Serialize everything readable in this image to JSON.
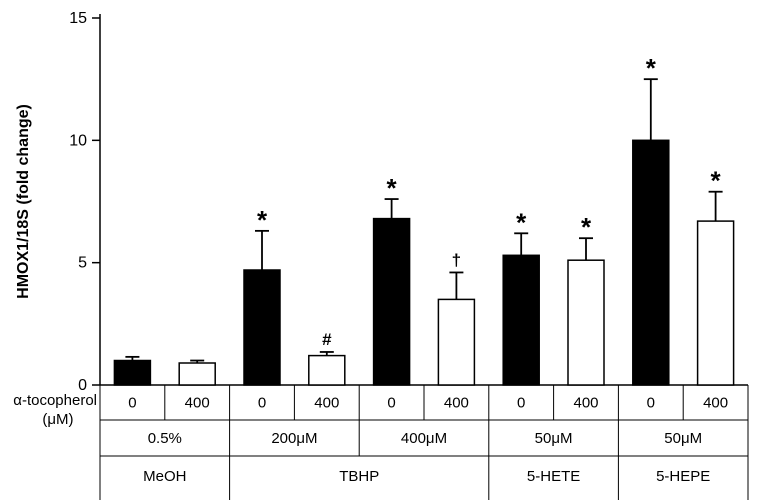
{
  "figure": {
    "background": "#ffffff",
    "border_color": "#000000"
  },
  "chart_data": {
    "type": "bar",
    "title": "",
    "ylabel": "HMOX1/18S (fold change)",
    "ylim": [
      0,
      15
    ],
    "yticks": [
      0,
      5,
      10,
      15
    ],
    "grid": false,
    "legend": "none",
    "x_row_labels": {
      "line1": "α-tocopherol",
      "line2": "(μM)"
    },
    "bar_colors": {
      "0": "#000000",
      "400": "#ffffff"
    },
    "bar_edge_color": "#000000",
    "error_bar_color": "#000000",
    "groups": [
      {
        "concentration": "0.5%",
        "treatment": "MeOH",
        "bars": [
          {
            "tocopherol": "0",
            "value": 1.0,
            "error": 0.15,
            "annotation": ""
          },
          {
            "tocopherol": "400",
            "value": 0.9,
            "error": 0.1,
            "annotation": ""
          }
        ]
      },
      {
        "concentration": "200μM",
        "treatment": "TBHP",
        "bars": [
          {
            "tocopherol": "0",
            "value": 4.7,
            "error": 1.6,
            "annotation": "*"
          },
          {
            "tocopherol": "400",
            "value": 1.2,
            "error": 0.15,
            "annotation": "#"
          }
        ]
      },
      {
        "concentration": "400μM",
        "treatment": "TBHP",
        "bars": [
          {
            "tocopherol": "0",
            "value": 6.8,
            "error": 0.8,
            "annotation": "*"
          },
          {
            "tocopherol": "400",
            "value": 3.5,
            "error": 1.1,
            "annotation": "†"
          }
        ]
      },
      {
        "concentration": "50μM",
        "treatment": "5-HETE",
        "bars": [
          {
            "tocopherol": "0",
            "value": 5.3,
            "error": 0.9,
            "annotation": "*"
          },
          {
            "tocopherol": "400",
            "value": 5.1,
            "error": 0.9,
            "annotation": "*"
          }
        ]
      },
      {
        "concentration": "50μM",
        "treatment": "5-HEPE",
        "bars": [
          {
            "tocopherol": "0",
            "value": 10.0,
            "error": 2.5,
            "annotation": "*"
          },
          {
            "tocopherol": "400",
            "value": 6.7,
            "error": 1.2,
            "annotation": "*"
          }
        ]
      }
    ],
    "treatment_spans": [
      {
        "label": "MeOH",
        "start": 0,
        "span": 1
      },
      {
        "label": "TBHP",
        "start": 1,
        "span": 2
      },
      {
        "label": "5-HETE",
        "start": 3,
        "span": 1
      },
      {
        "label": "5-HEPE",
        "start": 4,
        "span": 1
      }
    ]
  }
}
